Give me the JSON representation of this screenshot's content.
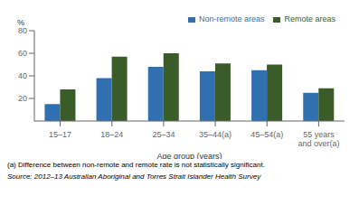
{
  "chart_data": {
    "type": "bar",
    "categories": [
      "15–17",
      "18–24",
      "25–34",
      "35–44(a)",
      "45–54(a)",
      "55 years\nand over(a)"
    ],
    "series": [
      {
        "name": "Non-remote areas",
        "color": "#3070B0",
        "values": [
          15,
          38,
          48,
          44,
          45,
          25
        ]
      },
      {
        "name": "Remote areas",
        "color": "#3A5C28",
        "values": [
          28,
          57,
          60,
          51,
          50,
          29
        ]
      }
    ],
    "ylabel": "%",
    "xlabel": "Age group (years)",
    "ylim": [
      0,
      80
    ],
    "yticks": [
      20,
      40,
      60,
      80
    ],
    "legend": "upper right",
    "grid": false,
    "annotations": [
      "(a) Difference between non-remote and remote rate is not statistically significant.",
      "Source: 2012–13 Australian Aboriginal and Torres Strait Islander Health Survey"
    ]
  }
}
